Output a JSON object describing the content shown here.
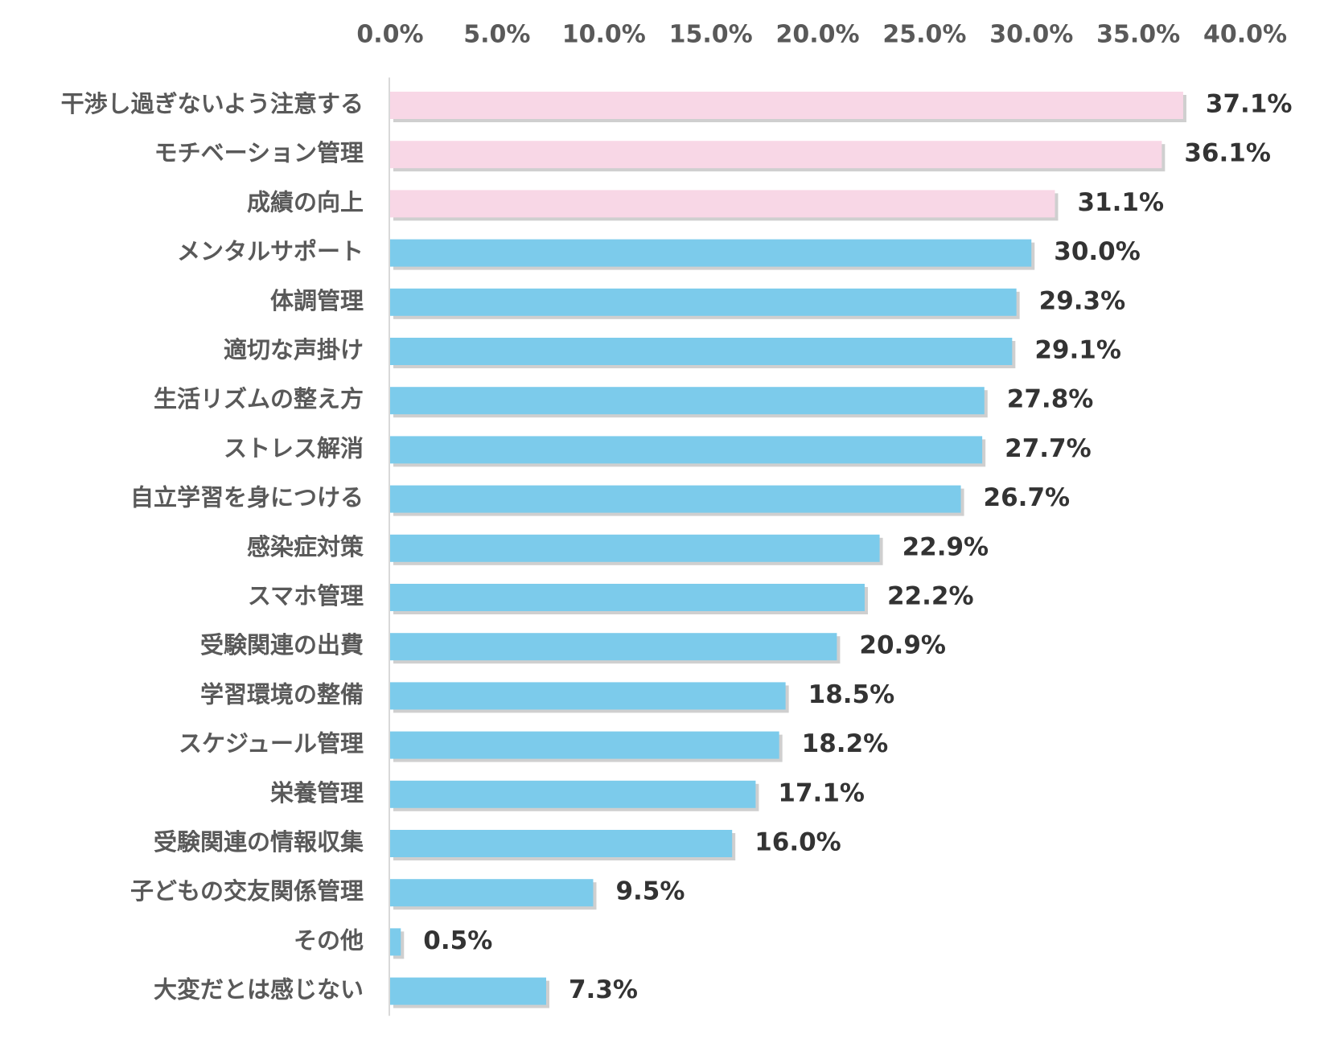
{
  "chart_data": {
    "type": "bar",
    "orientation": "horizontal",
    "title": "",
    "xlabel": "",
    "ylabel": "",
    "xlim": [
      0,
      40
    ],
    "x_ticks": [
      "0.0%",
      "5.0%",
      "10.0%",
      "15.0%",
      "20.0%",
      "25.0%",
      "30.0%",
      "35.0%",
      "40.0%"
    ],
    "x_axis_position": "top",
    "grid": false,
    "categories": [
      "干渉し過ぎないよう注意する",
      "モチベーション管理",
      "成績の向上",
      "メンタルサポート",
      "体調管理",
      "適切な声掛け",
      "生活リズムの整え方",
      "ストレス解消",
      "自立学習を身につける",
      "感染症対策",
      "スマホ管理",
      "受験関連の出費",
      "学習環境の整備",
      "スケジュール管理",
      "栄養管理",
      "受験関連の情報収集",
      "子どもの交友関係管理",
      "その他",
      "大変だとは感じない"
    ],
    "values": [
      37.1,
      36.1,
      31.1,
      30.0,
      29.3,
      29.1,
      27.8,
      27.7,
      26.7,
      22.9,
      22.2,
      20.9,
      18.5,
      18.2,
      17.1,
      16.0,
      9.5,
      0.5,
      7.3
    ],
    "value_labels": [
      "37.1%",
      "36.1%",
      "31.1%",
      "30.0%",
      "29.3%",
      "29.1%",
      "27.8%",
      "27.7%",
      "26.7%",
      "22.9%",
      "22.2%",
      "20.9%",
      "18.5%",
      "18.2%",
      "17.1%",
      "16.0%",
      "9.5%",
      "0.5%",
      "7.3%"
    ],
    "highlight_count": 3,
    "colors": {
      "highlight": "#f8d7e6",
      "default": "#7ccbeb",
      "shadow": "#bfbfbf",
      "axis": "#d9d9d9"
    }
  }
}
